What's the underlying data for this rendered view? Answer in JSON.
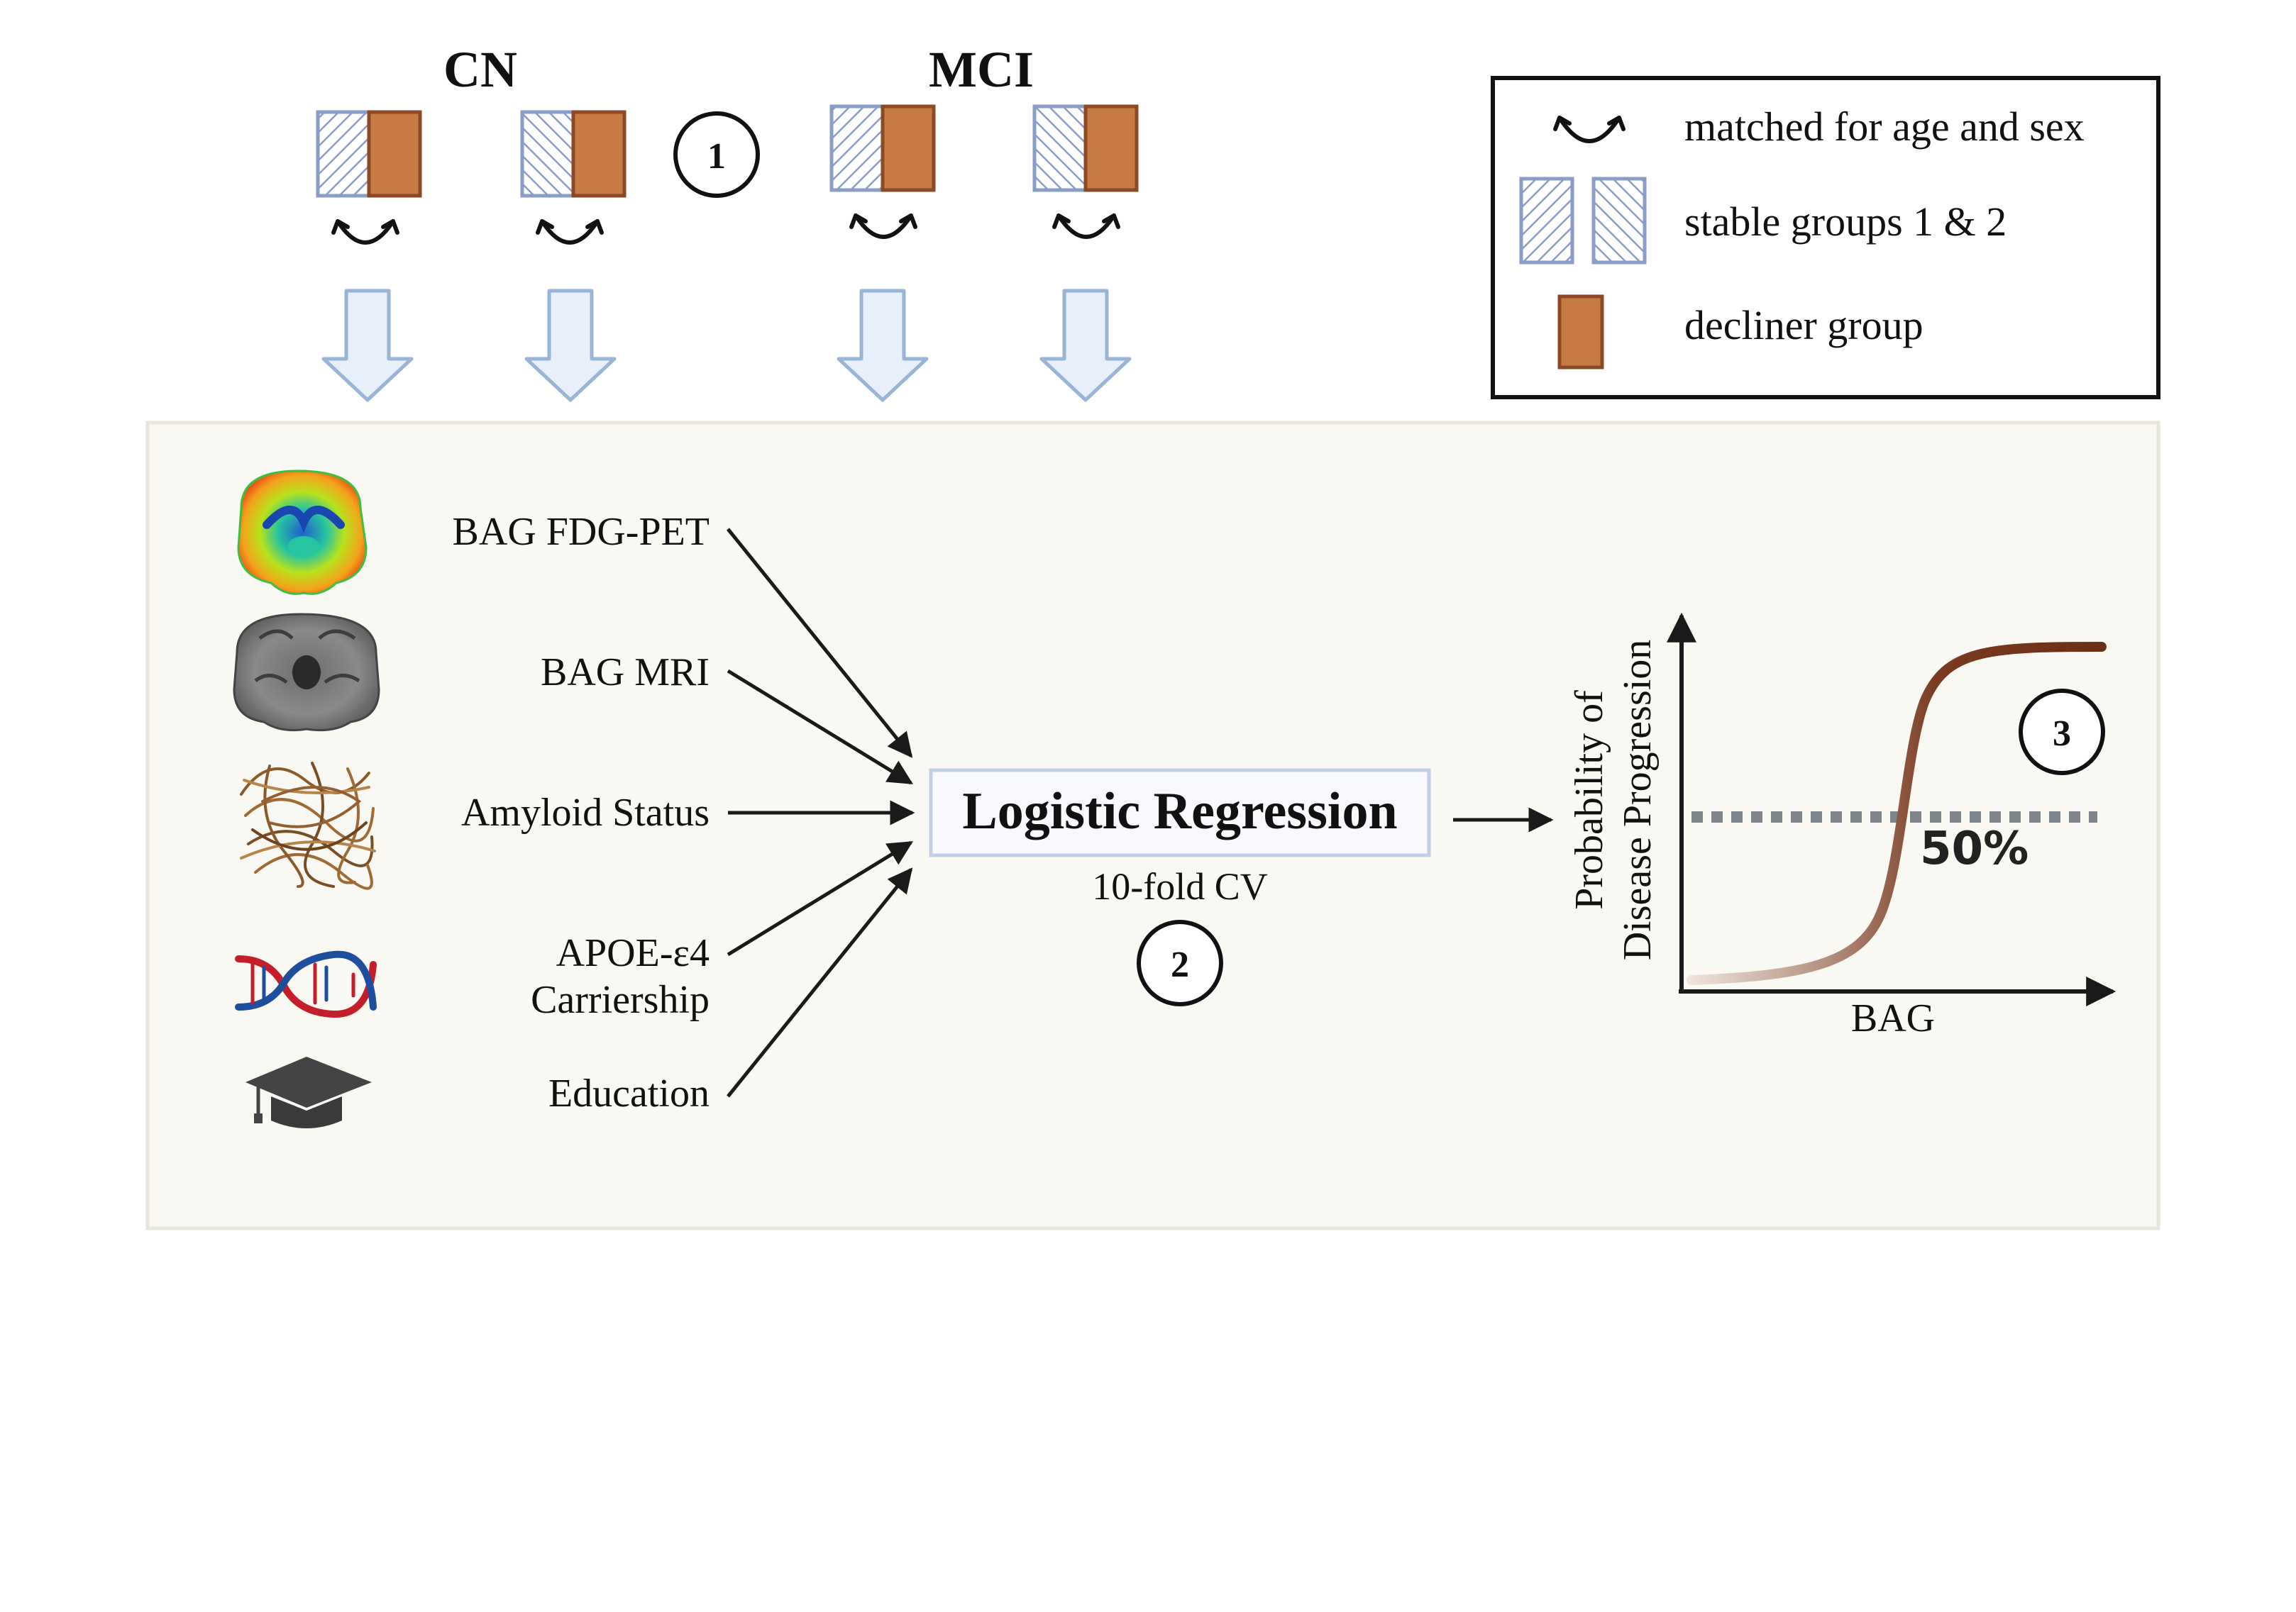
{
  "groups": {
    "cn": "CN",
    "mci": "MCI"
  },
  "legend": {
    "matched": "matched for age and sex",
    "stable": "stable groups 1 & 2",
    "decliner": "decliner group"
  },
  "inputs": [
    {
      "label": "BAG FDG-PET",
      "icon": "pet-brain-icon"
    },
    {
      "label": "BAG MRI",
      "icon": "mri-brain-icon"
    },
    {
      "label": "Amyloid Status",
      "icon": "amyloid-fibers-icon"
    },
    {
      "label_line1": "APOE-ε4",
      "label_line2": "Carriership",
      "icon": "dna-icon"
    },
    {
      "label": "Education",
      "icon": "graduation-cap-icon"
    }
  ],
  "model": {
    "title": "Logistic Regression",
    "cv": "10-fold CV"
  },
  "steps": {
    "s1": "1",
    "s2": "2",
    "s3": "3"
  },
  "plot": {
    "ylabel_line1": "Probability of",
    "ylabel_line2": "Disease Progression",
    "xlabel": "BAG",
    "threshold": "50%"
  },
  "colors": {
    "stable_hatch": "#8a9dc8",
    "decliner": "#c97b45",
    "decliner_border": "#8b4a25",
    "panel_bg": "#f9f8f2",
    "arrow_fill": "#e6effa",
    "arrow_stroke": "#9ab4d6",
    "curve": "#6b2f17"
  }
}
